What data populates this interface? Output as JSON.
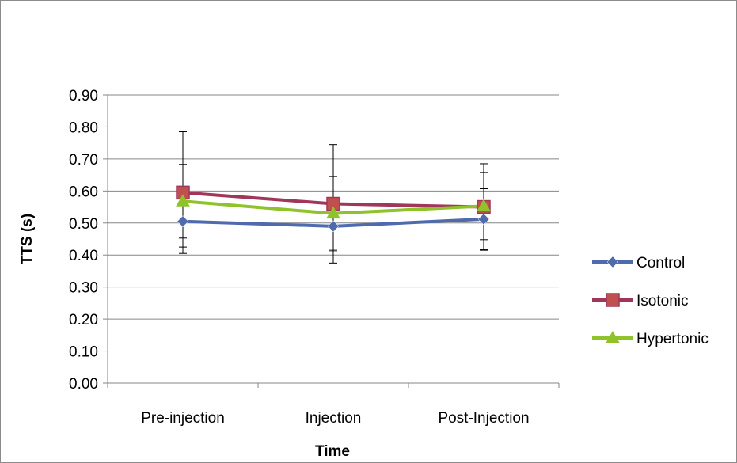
{
  "chart_data": {
    "type": "line",
    "categories": [
      "Pre-injection",
      "Injection",
      "Post-Injection"
    ],
    "xlabel": "Time",
    "ylabel": "TTS (s)",
    "ylim": [
      0,
      0.9
    ],
    "yticks": [
      "0.00",
      "0.10",
      "0.20",
      "0.30",
      "0.40",
      "0.50",
      "0.60",
      "0.70",
      "0.80",
      "0.90"
    ],
    "grid": true,
    "legend_position": "right",
    "series": [
      {
        "name": "Control",
        "values": [
          0.505,
          0.49,
          0.512
        ],
        "error": [
          0.08,
          0.08,
          0.095
        ],
        "color": "#4f6bad",
        "marker": "diamond"
      },
      {
        "name": "Isotonic",
        "values": [
          0.595,
          0.56,
          0.55
        ],
        "error": [
          0.19,
          0.185,
          0.135
        ],
        "color": "#a0375b",
        "marker": "square"
      },
      {
        "name": "Hypertonic",
        "values": [
          0.568,
          0.53,
          0.553
        ],
        "error": [
          0.115,
          0.115,
          0.105
        ],
        "color": "#8fc22b",
        "marker": "triangle"
      }
    ]
  }
}
